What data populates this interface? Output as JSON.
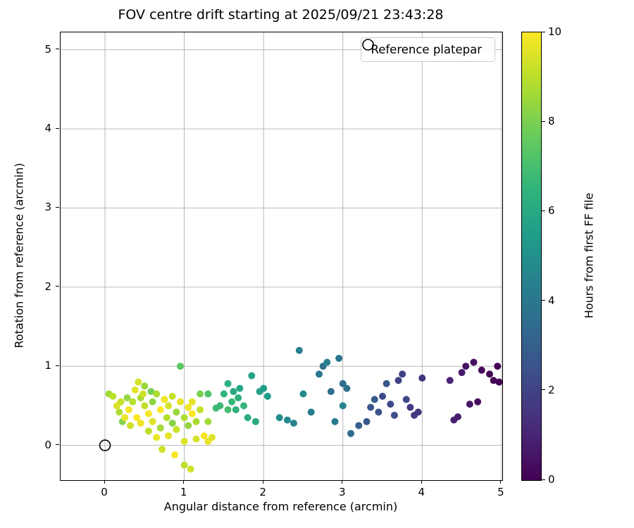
{
  "chart_data": {
    "type": "scatter",
    "title": "FOV centre drift starting at 2025/09/21 23:43:28",
    "xlabel": "Angular distance from reference (arcmin)",
    "ylabel": "Rotation from reference (arcmin)",
    "xlim": [
      -0.56,
      5.01
    ],
    "ylim": [
      -0.44,
      5.22
    ],
    "xticks": [
      0,
      1,
      2,
      3,
      4,
      5
    ],
    "yticks": [
      0,
      1,
      2,
      3,
      4,
      5
    ],
    "grid": true,
    "grid_color": "#b0b0b0",
    "legend": {
      "label": "Reference platepar",
      "position": "upper right"
    },
    "colorbar": {
      "label": "Hours from first FF file",
      "min": 0,
      "max": 10,
      "ticks": [
        0,
        2,
        4,
        6,
        8,
        10
      ],
      "colormap": "viridis"
    },
    "reference_point": {
      "x": 0,
      "y": 0
    },
    "points": [
      [
        0.05,
        0.65,
        8.6
      ],
      [
        0.1,
        0.62,
        9.0
      ],
      [
        0.15,
        0.5,
        9.5
      ],
      [
        0.18,
        0.42,
        8.8
      ],
      [
        0.2,
        0.55,
        9.2
      ],
      [
        0.22,
        0.3,
        8.1
      ],
      [
        0.25,
        0.35,
        9.7
      ],
      [
        0.28,
        0.6,
        8.4
      ],
      [
        0.3,
        0.45,
        9.9
      ],
      [
        0.32,
        0.25,
        9.3
      ],
      [
        0.35,
        0.55,
        8.9
      ],
      [
        0.38,
        0.7,
        9.6
      ],
      [
        0.4,
        0.35,
        10.0
      ],
      [
        0.42,
        0.8,
        9.4
      ],
      [
        0.45,
        0.6,
        8.7
      ],
      [
        0.45,
        0.28,
        9.8
      ],
      [
        0.48,
        0.65,
        9.3
      ],
      [
        0.5,
        0.5,
        9.1
      ],
      [
        0.5,
        0.75,
        8.5
      ],
      [
        0.55,
        0.4,
        9.9
      ],
      [
        0.55,
        0.18,
        9.0
      ],
      [
        0.58,
        0.68,
        7.9
      ],
      [
        0.6,
        0.55,
        8.3
      ],
      [
        0.6,
        0.3,
        9.5
      ],
      [
        0.65,
        0.65,
        8.8
      ],
      [
        0.65,
        0.1,
        9.7
      ],
      [
        0.7,
        0.45,
        10.0
      ],
      [
        0.7,
        0.22,
        8.6
      ],
      [
        0.72,
        -0.05,
        9.3
      ],
      [
        0.75,
        0.58,
        9.8
      ],
      [
        0.78,
        0.35,
        8.9
      ],
      [
        0.8,
        0.5,
        9.4
      ],
      [
        0.8,
        0.12,
        9.6
      ],
      [
        0.85,
        0.28,
        8.2
      ],
      [
        0.85,
        0.62,
        9.1
      ],
      [
        0.88,
        -0.12,
        9.9
      ],
      [
        0.9,
        0.42,
        8.5
      ],
      [
        0.9,
        0.2,
        9.2
      ],
      [
        0.95,
        1.0,
        7.4
      ],
      [
        0.95,
        0.55,
        9.7
      ],
      [
        1.0,
        0.35,
        8.8
      ],
      [
        1.0,
        0.05,
        9.5
      ],
      [
        1.0,
        -0.25,
        9.0
      ],
      [
        1.05,
        0.48,
        9.8
      ],
      [
        1.05,
        0.25,
        8.4
      ],
      [
        1.08,
        -0.3,
        9.3
      ],
      [
        1.1,
        0.55,
        9.6
      ],
      [
        1.1,
        0.4,
        10.0
      ],
      [
        1.15,
        0.3,
        8.7
      ],
      [
        1.15,
        0.08,
        9.4
      ],
      [
        1.2,
        0.45,
        9.1
      ],
      [
        1.2,
        0.65,
        8.0
      ],
      [
        1.25,
        0.12,
        9.9
      ],
      [
        1.3,
        0.05,
        9.7
      ],
      [
        1.3,
        0.3,
        8.6
      ],
      [
        1.35,
        0.1,
        9.5
      ],
      [
        1.3,
        0.65,
        7.2
      ],
      [
        1.4,
        0.47,
        6.9
      ],
      [
        1.45,
        0.5,
        6.8
      ],
      [
        1.5,
        0.65,
        6.5
      ],
      [
        1.55,
        0.78,
        6.3
      ],
      [
        1.55,
        0.45,
        7.0
      ],
      [
        1.6,
        0.55,
        6.7
      ],
      [
        1.62,
        0.68,
        6.0
      ],
      [
        1.65,
        0.45,
        6.4
      ],
      [
        1.68,
        0.6,
        6.3
      ],
      [
        1.7,
        0.72,
        5.9
      ],
      [
        1.75,
        0.5,
        6.6
      ],
      [
        1.8,
        0.35,
        6.2
      ],
      [
        1.85,
        0.88,
        5.8
      ],
      [
        1.9,
        0.3,
        6.1
      ],
      [
        1.95,
        0.68,
        5.7
      ],
      [
        2.0,
        0.72,
        5.5
      ],
      [
        2.05,
        0.62,
        5.6
      ],
      [
        2.2,
        0.35,
        4.9
      ],
      [
        2.3,
        0.32,
        4.7
      ],
      [
        2.38,
        0.28,
        4.5
      ],
      [
        2.45,
        1.2,
        4.3
      ],
      [
        2.5,
        0.65,
        4.8
      ],
      [
        2.6,
        0.42,
        4.2
      ],
      [
        2.7,
        0.9,
        4.0
      ],
      [
        2.75,
        1.0,
        3.8
      ],
      [
        2.8,
        1.05,
        4.4
      ],
      [
        2.85,
        0.68,
        3.6
      ],
      [
        2.9,
        0.3,
        4.1
      ],
      [
        2.95,
        1.1,
        3.9
      ],
      [
        3.0,
        0.78,
        3.5
      ],
      [
        3.0,
        0.5,
        4.6
      ],
      [
        3.05,
        0.72,
        3.7
      ],
      [
        3.1,
        0.15,
        3.4
      ],
      [
        3.2,
        0.25,
        3.0
      ],
      [
        3.3,
        0.3,
        2.8
      ],
      [
        3.35,
        0.48,
        2.6
      ],
      [
        3.4,
        0.58,
        2.9
      ],
      [
        3.45,
        0.42,
        2.5
      ],
      [
        3.5,
        0.62,
        2.3
      ],
      [
        3.55,
        0.78,
        2.7
      ],
      [
        3.6,
        0.52,
        2.2
      ],
      [
        3.65,
        0.38,
        2.4
      ],
      [
        3.7,
        0.82,
        2.0
      ],
      [
        3.75,
        0.9,
        1.9
      ],
      [
        3.8,
        0.58,
        2.1
      ],
      [
        3.85,
        0.48,
        1.7
      ],
      [
        3.9,
        0.38,
        1.8
      ],
      [
        3.95,
        0.42,
        1.6
      ],
      [
        4.0,
        0.85,
        1.5
      ],
      [
        4.35,
        0.82,
        1.0
      ],
      [
        4.4,
        0.32,
        0.9
      ],
      [
        4.45,
        0.36,
        0.8
      ],
      [
        4.5,
        0.92,
        0.7
      ],
      [
        4.55,
        1.0,
        0.5
      ],
      [
        4.6,
        0.52,
        0.6
      ],
      [
        4.65,
        1.05,
        0.4
      ],
      [
        4.7,
        0.55,
        0.3
      ],
      [
        4.75,
        0.95,
        0.2
      ],
      [
        4.85,
        0.9,
        0.15
      ],
      [
        4.9,
        0.82,
        0.1
      ],
      [
        4.95,
        1.0,
        0.05
      ],
      [
        4.97,
        0.8,
        0.0
      ]
    ]
  }
}
